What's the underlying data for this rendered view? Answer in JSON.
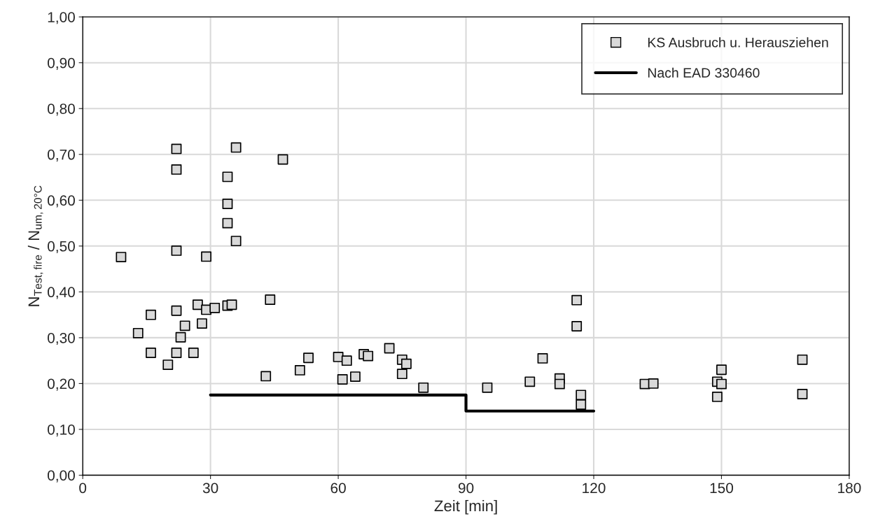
{
  "chart_data": {
    "type": "scatter",
    "xlabel": "Zeit [min]",
    "ylabel": "N$_{Test,fire}$ / N$_{um,20°C}$",
    "xlim": [
      0,
      180
    ],
    "xticks": [
      0,
      30,
      60,
      90,
      120,
      150,
      180
    ],
    "ylim": [
      0,
      1
    ],
    "yticks": [
      {
        "value": 0,
        "label": "0,00"
      },
      {
        "value": 0.1,
        "label": "0,10"
      },
      {
        "value": 0.2,
        "label": "0,20"
      },
      {
        "value": 0.3,
        "label": "0,30"
      },
      {
        "value": 0.4,
        "label": "0,40"
      },
      {
        "value": 0.5,
        "label": "0,50"
      },
      {
        "value": 0.6,
        "label": "0,60"
      },
      {
        "value": 0.7,
        "label": "0,70"
      },
      {
        "value": 0.8,
        "label": "0,80"
      },
      {
        "value": 0.9,
        "label": "0,90"
      },
      {
        "value": 1,
        "label": "1,00"
      }
    ],
    "grid": true,
    "legend": "top right",
    "series": [
      {
        "name": "KS Ausbruch u. Herausziehen",
        "color": "#d9d9d9",
        "marker": "square",
        "x": [
          9,
          13,
          16,
          16,
          20,
          22,
          22,
          22,
          22,
          22,
          23,
          24,
          26,
          27,
          28,
          29,
          29,
          31,
          34,
          34,
          34,
          34,
          35,
          36,
          36,
          43,
          44,
          47,
          51,
          53,
          60,
          61,
          62,
          64,
          66,
          67,
          72,
          75,
          75,
          76,
          80,
          95,
          105,
          108,
          112,
          112,
          116,
          116,
          117,
          117,
          132,
          134,
          149,
          149,
          150,
          150,
          169,
          169
        ],
        "values": [
          0.476,
          0.31,
          0.35,
          0.267,
          0.241,
          0.712,
          0.667,
          0.49,
          0.359,
          0.267,
          0.301,
          0.326,
          0.267,
          0.372,
          0.331,
          0.477,
          0.361,
          0.365,
          0.651,
          0.592,
          0.55,
          0.37,
          0.372,
          0.715,
          0.511,
          0.216,
          0.383,
          0.689,
          0.229,
          0.256,
          0.258,
          0.209,
          0.25,
          0.215,
          0.264,
          0.26,
          0.277,
          0.252,
          0.221,
          0.243,
          0.191,
          0.191,
          0.204,
          0.255,
          0.211,
          0.199,
          0.382,
          0.325,
          0.175,
          0.154,
          0.199,
          0.2,
          0.204,
          0.171,
          0.23,
          0.199,
          0.252,
          0.177
        ]
      },
      {
        "name": "Nach EAD 330460",
        "type": "line",
        "color": "#000000",
        "marker": "none",
        "line_style": "solid",
        "x": [
          30,
          90,
          90,
          120
        ],
        "values": [
          0.175,
          0.175,
          0.14,
          0.14
        ]
      }
    ]
  }
}
